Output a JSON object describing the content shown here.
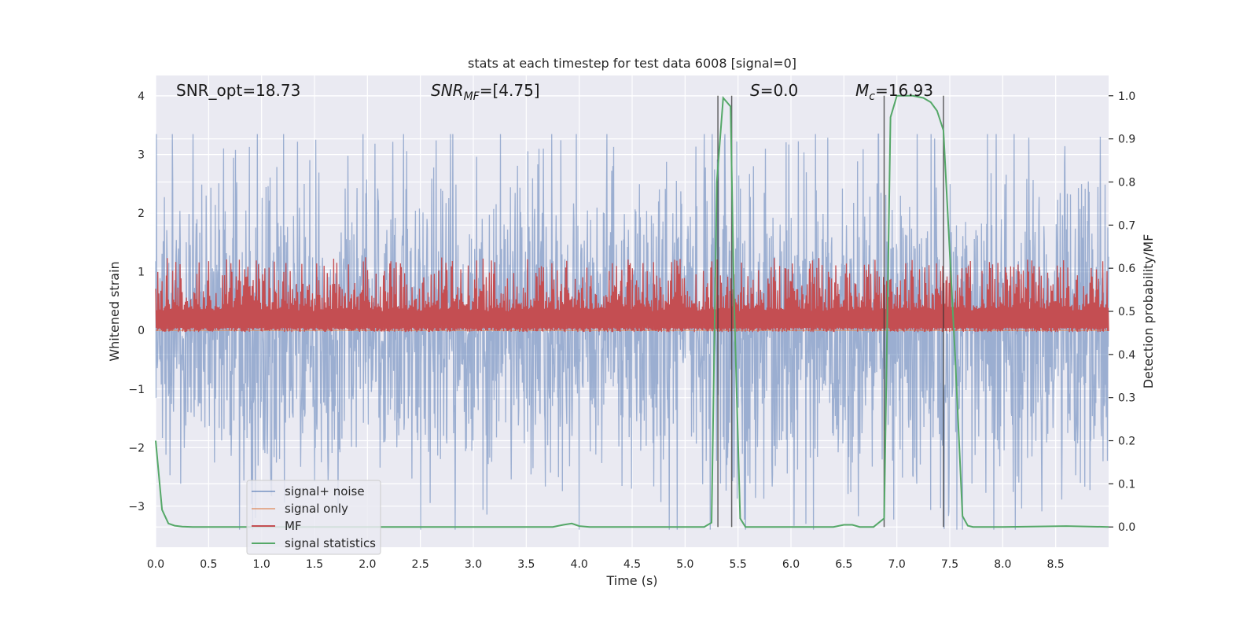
{
  "chart_data": {
    "type": "line",
    "title": "stats at each timestep for test data 6008 [signal=0]",
    "xlabel": "Time (s)",
    "ylabel_left": "Whitened strain",
    "ylabel_right": "Detection probability/MF",
    "xlim": [
      0,
      9
    ],
    "ylim_left": [
      -3.7,
      4.35
    ],
    "ylim_right": [
      -0.047,
      1.047
    ],
    "x_ticks": [
      0.0,
      0.5,
      1.0,
      1.5,
      2.0,
      2.5,
      3.0,
      3.5,
      4.0,
      4.5,
      5.0,
      5.5,
      6.0,
      6.5,
      7.0,
      7.5,
      8.0,
      8.5
    ],
    "x_tick_labels": [
      "0.0",
      "0.5",
      "1.0",
      "1.5",
      "2.0",
      "2.5",
      "3.0",
      "3.5",
      "4.0",
      "4.5",
      "5.0",
      "5.5",
      "6.0",
      "6.5",
      "7.0",
      "7.5",
      "8.0",
      "8.5"
    ],
    "y_left_ticks": [
      -3,
      -2,
      -1,
      0,
      1,
      2,
      3,
      4
    ],
    "y_left_tick_labels": [
      "−3",
      "−2",
      "−1",
      "0",
      "1",
      "2",
      "3",
      "4"
    ],
    "y_right_ticks": [
      0.0,
      0.1,
      0.2,
      0.3,
      0.4,
      0.5,
      0.6,
      0.7,
      0.8,
      0.9,
      1.0
    ],
    "y_right_tick_labels": [
      "0.0",
      "0.1",
      "0.2",
      "0.3",
      "0.4",
      "0.5",
      "0.6",
      "0.7",
      "0.8",
      "0.9",
      "1.0"
    ],
    "grid": true,
    "legend_position": "lower-left",
    "annotations": [
      {
        "id": "snr-opt",
        "text": "SNR_opt=18.73"
      },
      {
        "id": "snr-mf",
        "text": "SNR_MF=[4.75]",
        "math": true,
        "base": "SNR",
        "sub": "MF",
        "rest": "=[4.75]"
      },
      {
        "id": "s-val",
        "text": "S=0.0",
        "math": true,
        "base": "S",
        "sub": "",
        "rest": "=0.0"
      },
      {
        "id": "mc-val",
        "text": "M_c=16.93",
        "math": true,
        "base": "M",
        "sub": "c",
        "rest": "=16.93"
      }
    ],
    "vertical_markers_x": [
      5.31,
      5.44,
      6.88,
      7.44
    ],
    "series": [
      {
        "name": "signal+ noise",
        "color": "#4c72b0",
        "kind": "noise",
        "axis": "left",
        "envelope_typical": 1.8,
        "envelope_max": 3.35,
        "envelope_min": -3.4
      },
      {
        "name": "signal only",
        "color": "#dd8452",
        "kind": "flat",
        "axis": "left",
        "values_constant": 0.0
      },
      {
        "name": "MF",
        "color": "#c44e52",
        "kind": "mf",
        "axis": "right",
        "base": 0.5,
        "typical_peak": 0.56,
        "max_peak": 0.63
      },
      {
        "name": "signal statistics",
        "color": "#55a868",
        "kind": "line",
        "axis": "right",
        "x": [
          0.0,
          0.06,
          0.12,
          0.18,
          0.25,
          0.35,
          1.0,
          2.0,
          3.0,
          3.75,
          3.85,
          3.93,
          4.0,
          4.1,
          5.0,
          5.18,
          5.25,
          5.3,
          5.36,
          5.43,
          5.46,
          5.52,
          5.57,
          6.0,
          6.4,
          6.5,
          6.58,
          6.65,
          6.78,
          6.88,
          6.94,
          7.0,
          7.15,
          7.25,
          7.32,
          7.38,
          7.44,
          7.55,
          7.62,
          7.67,
          7.72,
          7.8,
          8.0,
          8.6,
          9.0
        ],
        "y": [
          0.2,
          0.04,
          0.008,
          0.003,
          0.001,
          0.0,
          0.0,
          0.0,
          0.0,
          0.0,
          0.005,
          0.008,
          0.002,
          0.0,
          0.0,
          0.0,
          0.01,
          0.8,
          0.995,
          0.975,
          0.55,
          0.02,
          0.0,
          0.0,
          0.0,
          0.005,
          0.005,
          0.0,
          0.0,
          0.02,
          0.95,
          1.0,
          1.0,
          0.995,
          0.985,
          0.965,
          0.92,
          0.4,
          0.025,
          0.003,
          0.0,
          0.0,
          0.0,
          0.002,
          0.0
        ]
      }
    ]
  }
}
